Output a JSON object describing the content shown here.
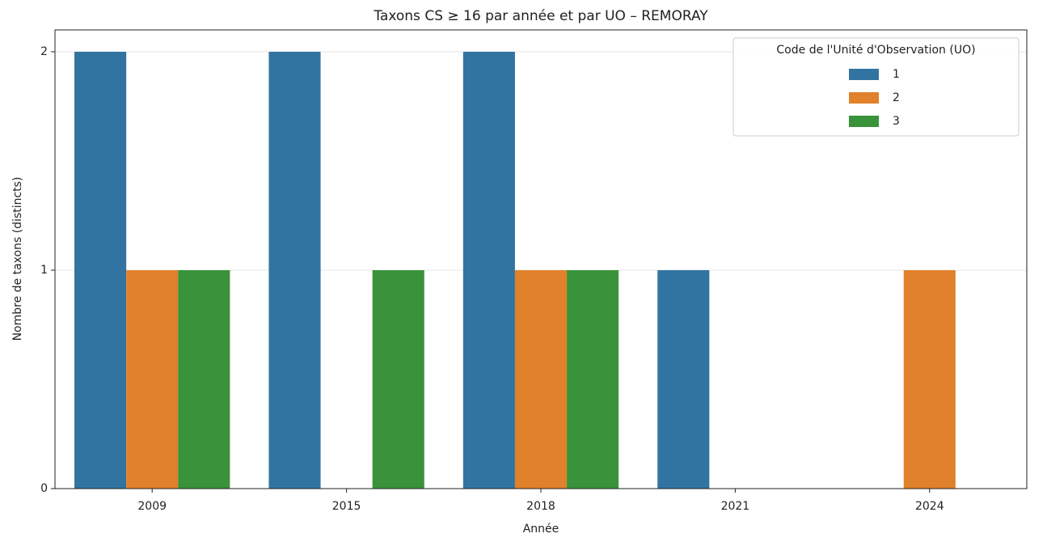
{
  "chart_data": {
    "type": "bar",
    "title": "Taxons CS ≥ 16 par année et par UO – REMORAY",
    "x_label": "Année",
    "y_label": "Nombre de taxons (distincts)",
    "categories": [
      "2009",
      "2015",
      "2018",
      "2021",
      "2024"
    ],
    "series": [
      {
        "name": "1",
        "color": "#3274a1",
        "values": [
          2,
          2,
          2,
          1,
          null
        ]
      },
      {
        "name": "2",
        "color": "#e1812c",
        "values": [
          1,
          null,
          1,
          null,
          1
        ]
      },
      {
        "name": "3",
        "color": "#3a923a",
        "values": [
          1,
          1,
          1,
          null,
          null
        ]
      }
    ],
    "legend_title": "Code de l'Unité d'Observation (UO)",
    "legend_position": "upper right",
    "ylim": [
      0,
      2.1
    ],
    "yticks": [
      0,
      1,
      2
    ],
    "grid": true
  }
}
